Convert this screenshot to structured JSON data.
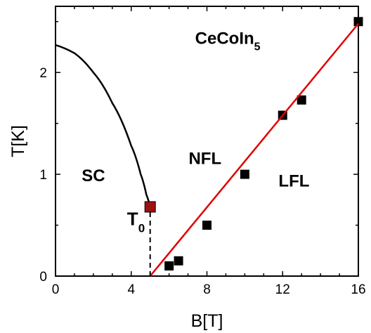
{
  "chart_data": {
    "type": "scatter",
    "title": "",
    "xlabel": "B[T]",
    "ylabel": "T[K]",
    "xlim": [
      0,
      16
    ],
    "ylim": [
      0,
      2.65
    ],
    "x_ticks": [
      0,
      4,
      8,
      12,
      16
    ],
    "y_ticks": [
      0,
      1,
      2
    ],
    "x_tick_labels": [
      "0",
      "4",
      "8",
      "12",
      "16"
    ],
    "y_tick_labels": [
      "0",
      "1",
      "2"
    ],
    "grid": false,
    "series": [
      {
        "kind": "scatter",
        "marker": "square",
        "color": "#000000",
        "x": [
          6.0,
          6.5,
          8.0,
          10.0,
          12.0,
          13.0,
          16.0
        ],
        "y": [
          0.1,
          0.15,
          0.5,
          1.0,
          1.58,
          1.73,
          2.5
        ]
      },
      {
        "kind": "line",
        "color": "#e00000",
        "x": [
          5.0,
          16.0
        ],
        "y": [
          0.0,
          2.48
        ]
      },
      {
        "kind": "curve",
        "color": "#000000",
        "x": [
          0.0,
          1.0,
          2.0,
          3.0,
          4.0,
          4.5,
          4.8,
          5.0
        ],
        "y": [
          2.27,
          2.19,
          2.0,
          1.7,
          1.28,
          1.0,
          0.8,
          0.68
        ]
      },
      {
        "kind": "dashed-line",
        "color": "#000000",
        "x": [
          5.0,
          5.0
        ],
        "y": [
          0.0,
          0.68
        ]
      },
      {
        "kind": "marker",
        "marker": "square",
        "color": "#a01010",
        "x": [
          5.0
        ],
        "y": [
          0.68
        ]
      }
    ],
    "annotations": [
      {
        "text": "SC",
        "x": 2.0,
        "y": 0.93
      },
      {
        "text": "NFL",
        "x": 7.9,
        "y": 1.1
      },
      {
        "text": "LFL",
        "x": 12.6,
        "y": 0.88
      }
    ],
    "compound": {
      "base": "CeCoIn",
      "subscript": "5",
      "x": 9.1,
      "y": 2.28
    },
    "t0_label": {
      "base": "T",
      "subscript": "0",
      "x": 4.25,
      "y": 0.5
    }
  }
}
